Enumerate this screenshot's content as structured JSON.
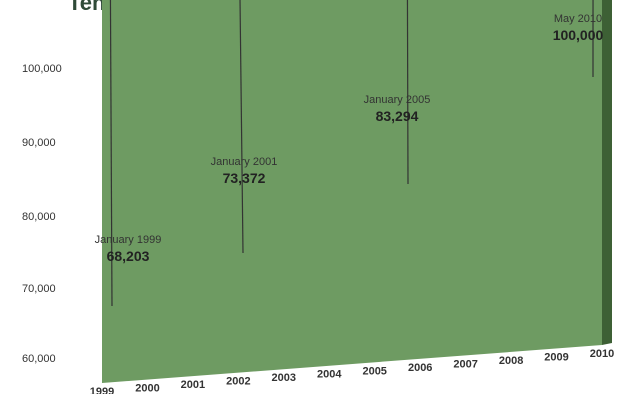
{
  "chart_data": {
    "type": "area",
    "title": "Ten-year Growth",
    "x": [
      "1999",
      "2000",
      "2001",
      "2002",
      "2003",
      "2004",
      "2005",
      "2006",
      "2007",
      "2008",
      "2009",
      "2010"
    ],
    "values": [
      68203,
      71500,
      73372,
      75600,
      78200,
      81800,
      83294,
      86600,
      89800,
      93200,
      97000,
      100000
    ],
    "ylim": [
      60000,
      100000
    ],
    "yticks": [
      "60,000",
      "70,000",
      "80,000",
      "90,000",
      "100,000"
    ],
    "grid": true,
    "colors": {
      "area": "#6e9b62",
      "area_top": "#456b3e",
      "area_side": "#3d6035"
    },
    "annotations": [
      {
        "date": "January 1999",
        "value": "68,203",
        "x_index": 0
      },
      {
        "date": "January 2001",
        "value": "73,372",
        "x_index": 2
      },
      {
        "date": "January 2005",
        "value": "83,294",
        "x_index": 6
      },
      {
        "date": "May 2010",
        "value": "100,000",
        "x_index": 11
      }
    ]
  }
}
